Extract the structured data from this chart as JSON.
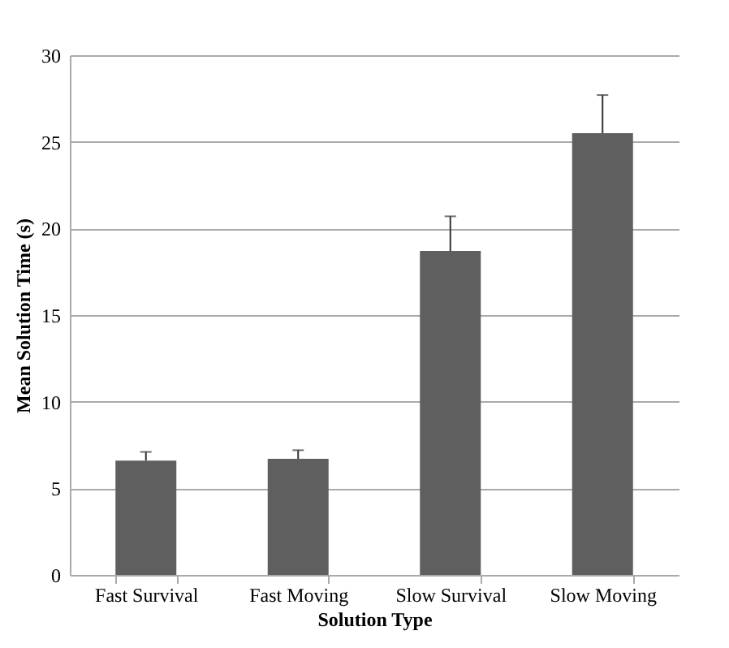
{
  "chart_data": {
    "type": "bar",
    "xlabel": "Solution Type",
    "ylabel": "Mean Solution Time (s)",
    "categories": [
      "Fast Survival",
      "Fast Moving",
      "Slow Survival",
      "Slow Moving"
    ],
    "series": [
      {
        "color": "#5f5f5f",
        "values": [
          6.6,
          6.7,
          18.7,
          25.5
        ],
        "errors": [
          [
            6.6,
            7.1
          ],
          [
            6.7,
            7.2
          ],
          [
            18.7,
            20.7
          ],
          [
            25.5,
            27.7
          ]
        ]
      }
    ],
    "ylim": [
      0,
      30
    ],
    "yticks": [
      0,
      5,
      10,
      15,
      20,
      25,
      30
    ],
    "grid": "y"
  }
}
